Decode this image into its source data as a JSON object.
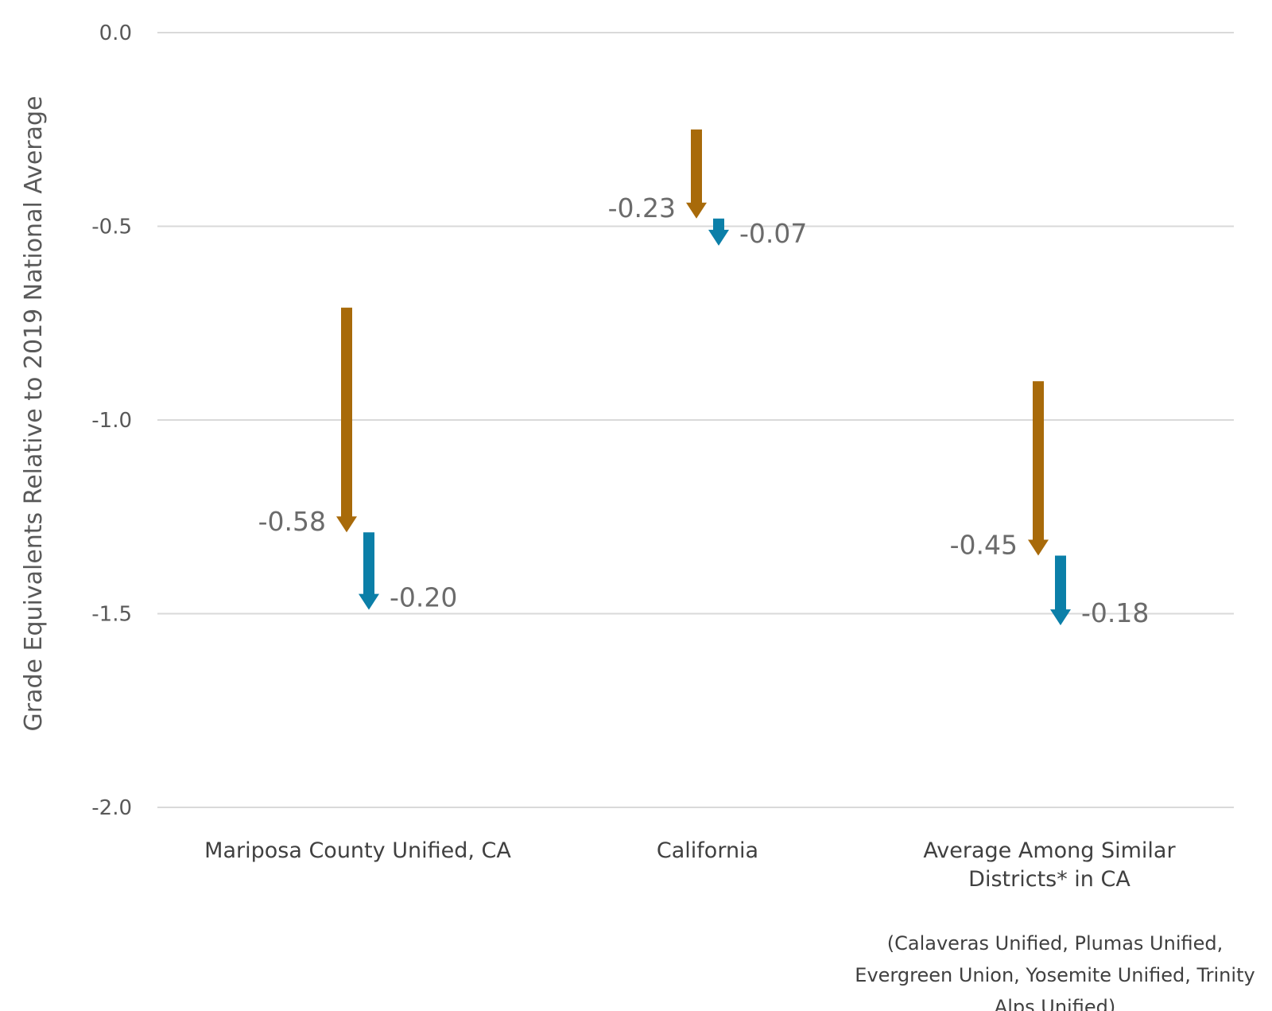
{
  "chart_data": {
    "type": "arrow-drop",
    "ylabel": "Grade Equivalents Relative to 2019 National Average",
    "ylim": [
      -2.0,
      0.0
    ],
    "yticks": [
      0.0,
      -0.5,
      -1.0,
      -1.5,
      -2.0
    ],
    "ytick_labels": [
      "0.0",
      "-0.5",
      "-1.0",
      "-1.5",
      "-2.0"
    ],
    "grid": true,
    "colors": {
      "first": "#a86a0a",
      "second": "#0b7fa8"
    },
    "categories": [
      {
        "label_lines": [
          "Mariposa County Unified, CA"
        ],
        "drops": [
          {
            "from": -0.71,
            "to": -1.29,
            "label": "-0.58"
          },
          {
            "from": -1.29,
            "to": -1.49,
            "label": "-0.20"
          }
        ]
      },
      {
        "label_lines": [
          "California"
        ],
        "drops": [
          {
            "from": -0.25,
            "to": -0.48,
            "label": "-0.23"
          },
          {
            "from": -0.48,
            "to": -0.55,
            "label": "-0.07"
          }
        ]
      },
      {
        "label_lines": [
          "Average Among Similar",
          "Districts* in CA"
        ],
        "drops": [
          {
            "from": -0.9,
            "to": -1.35,
            "label": "-0.45"
          },
          {
            "from": -1.35,
            "to": -1.53,
            "label": "-0.18"
          }
        ]
      }
    ],
    "note_lines": [
      "(Calaveras Unified, Plumas Unified,",
      "Evergreen Union, Yosemite Unified, Trinity",
      "Alps Unified)"
    ]
  }
}
